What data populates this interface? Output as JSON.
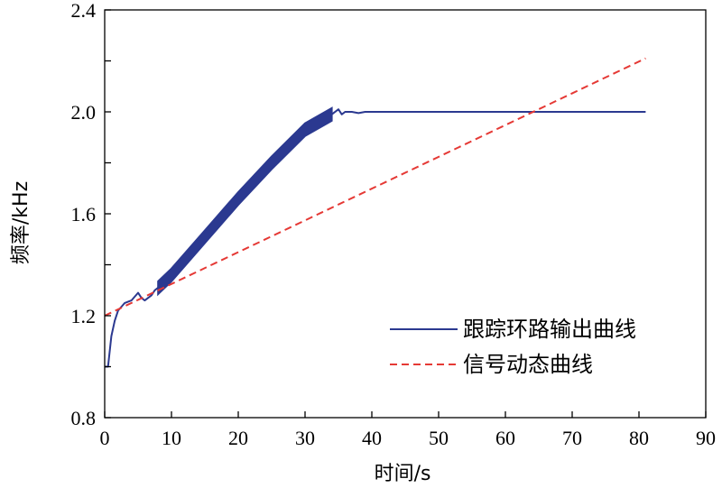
{
  "chart_data": {
    "type": "line",
    "title": "",
    "xlabel": "时间/s",
    "ylabel": "频率/kHz",
    "xlim": [
      0,
      90
    ],
    "ylim": [
      0.8,
      2.4
    ],
    "x_ticks": [
      0,
      10,
      20,
      30,
      40,
      50,
      60,
      70,
      80,
      90
    ],
    "y_ticks": [
      0.8,
      1.2,
      1.6,
      2.0,
      2.4
    ],
    "x_tick_labels": [
      "0",
      "10",
      "20",
      "30",
      "40",
      "50",
      "60",
      "70",
      "80",
      "90"
    ],
    "y_tick_labels": [
      "0.8",
      "1.2",
      "1.6",
      "2.0",
      "2.4"
    ],
    "grid": false,
    "legend_position": "lower-right",
    "series": [
      {
        "name": "跟踪环路输出曲线",
        "color": "#2b3990",
        "style": "solid",
        "band_width": 0.025,
        "x": [
          0,
          0.5,
          1,
          1.5,
          2,
          3,
          4,
          5,
          5.5,
          6,
          7,
          7.5,
          8,
          10,
          15,
          20,
          25,
          30,
          34,
          35,
          35.5,
          36,
          37,
          38,
          39,
          40,
          42,
          44,
          45,
          81
        ],
        "y": [
          1.0,
          1.0,
          1.12,
          1.18,
          1.22,
          1.25,
          1.26,
          1.29,
          1.27,
          1.26,
          1.28,
          1.3,
          1.31,
          1.36,
          1.51,
          1.66,
          1.8,
          1.93,
          1.99,
          2.01,
          1.99,
          2.0,
          2.0,
          1.995,
          2.0,
          2.0,
          2.0,
          2.0,
          2.0,
          2.0
        ]
      },
      {
        "name": "信号动态曲线",
        "color": "#e53935",
        "style": "dashed",
        "x": [
          0,
          81
        ],
        "y": [
          1.2,
          2.21
        ]
      }
    ]
  }
}
